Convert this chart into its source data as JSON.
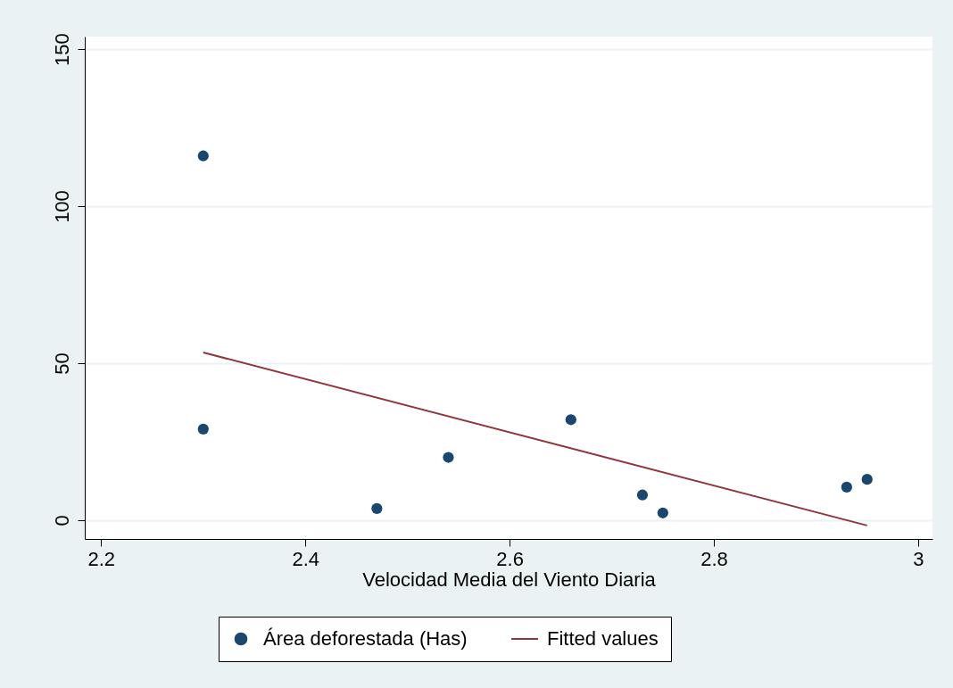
{
  "chart_data": {
    "type": "scatter",
    "xlabel": "Velocidad Media del Viento Diaria",
    "xlim": [
      2.184,
      3.014
    ],
    "xticks": [
      2.2,
      2.4,
      2.6,
      2.8,
      3
    ],
    "ylim": [
      -6,
      154
    ],
    "yticks": [
      0,
      50,
      100,
      150
    ],
    "grid": "y",
    "legend": "bottom",
    "series": [
      {
        "name": "Área deforestada (Has)",
        "marker": "circle",
        "color": "#1a476f",
        "x": [
          2.3,
          2.3,
          2.47,
          2.54,
          2.66,
          2.73,
          2.75,
          2.93,
          2.95
        ],
        "values": [
          116,
          29,
          3.7,
          20,
          32,
          8,
          2.3,
          10.5,
          13
        ]
      },
      {
        "name": "Fitted values",
        "type": "line",
        "color": "#90353b",
        "x": [
          2.3,
          2.95
        ],
        "values": [
          53.4,
          -1.7
        ]
      }
    ]
  }
}
